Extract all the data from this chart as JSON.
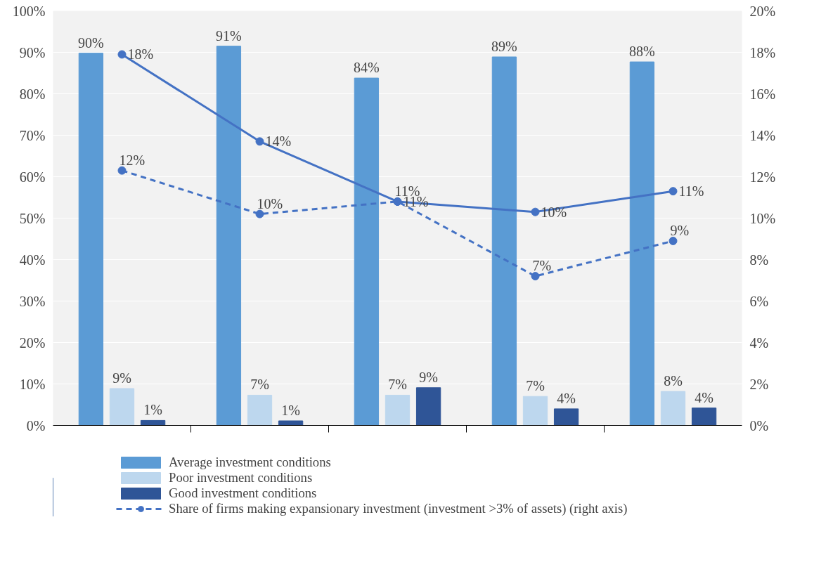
{
  "chart_data": {
    "type": "bar",
    "categories": [
      null,
      null,
      null,
      null,
      null
    ],
    "series": [
      {
        "name": "Average investment conditions",
        "color": "#5b9bd5",
        "values": [
          89.8,
          91.5,
          83.8,
          88.9,
          87.7
        ],
        "value_labels": [
          "90%",
          "91%",
          "84%",
          "89%",
          "88%"
        ]
      },
      {
        "name": "Poor investment conditions",
        "color": "#bdd7ee",
        "values": [
          8.9,
          7.3,
          7.3,
          7.0,
          8.2
        ],
        "value_labels": [
          "9%",
          "7%",
          "7%",
          "7%",
          "8%"
        ]
      },
      {
        "name": "Good investment conditions",
        "color": "#2f5597",
        "values": [
          1.2,
          1.1,
          9.1,
          4.0,
          4.2
        ],
        "value_labels": [
          "1%",
          "1%",
          "9%",
          "4%",
          "4%"
        ]
      },
      {
        "type": "line",
        "axis": "y2",
        "color": "#4472c4",
        "line_style": "solid",
        "marker": "circle",
        "values": [
          17.9,
          13.7,
          10.8,
          10.3,
          11.3
        ],
        "value_labels": [
          "18%",
          "14%",
          "11%",
          "10%",
          "11%"
        ]
      },
      {
        "name": "Share of firms making expansionary investment (investment >3% of assets) (right axis)",
        "type": "line",
        "axis": "y2",
        "color": "#4472c4",
        "line_style": "dashed",
        "marker": "circle",
        "values": [
          12.3,
          10.2,
          10.8,
          7.2,
          8.9
        ],
        "value_labels": [
          "12%",
          "10%",
          "11%",
          "7%",
          "9%"
        ]
      }
    ],
    "ylim": [
      0,
      100
    ],
    "yticks": [
      {
        "value": 0,
        "label": "0%"
      },
      {
        "value": 10,
        "label": "10%"
      },
      {
        "value": 20,
        "label": "20%"
      },
      {
        "value": 30,
        "label": "30%"
      },
      {
        "value": 40,
        "label": "40%"
      },
      {
        "value": 50,
        "label": "50%"
      },
      {
        "value": 60,
        "label": "60%"
      },
      {
        "value": 70,
        "label": "70%"
      },
      {
        "value": 80,
        "label": "80%"
      },
      {
        "value": 90,
        "label": "90%"
      },
      {
        "value": 100,
        "label": "100%"
      }
    ],
    "y2lim": [
      0,
      20
    ],
    "y2ticks": [
      {
        "value": 0,
        "label": "0%"
      },
      {
        "value": 2,
        "label": "2%"
      },
      {
        "value": 4,
        "label": "4%"
      },
      {
        "value": 6,
        "label": "6%"
      },
      {
        "value": 8,
        "label": "8%"
      },
      {
        "value": 10,
        "label": "10%"
      },
      {
        "value": 12,
        "label": "12%"
      },
      {
        "value": 14,
        "label": "14%"
      },
      {
        "value": 16,
        "label": "16%"
      },
      {
        "value": 18,
        "label": "18%"
      },
      {
        "value": 20,
        "label": "20%"
      }
    ],
    "grid": "y",
    "legend": "bottom"
  }
}
